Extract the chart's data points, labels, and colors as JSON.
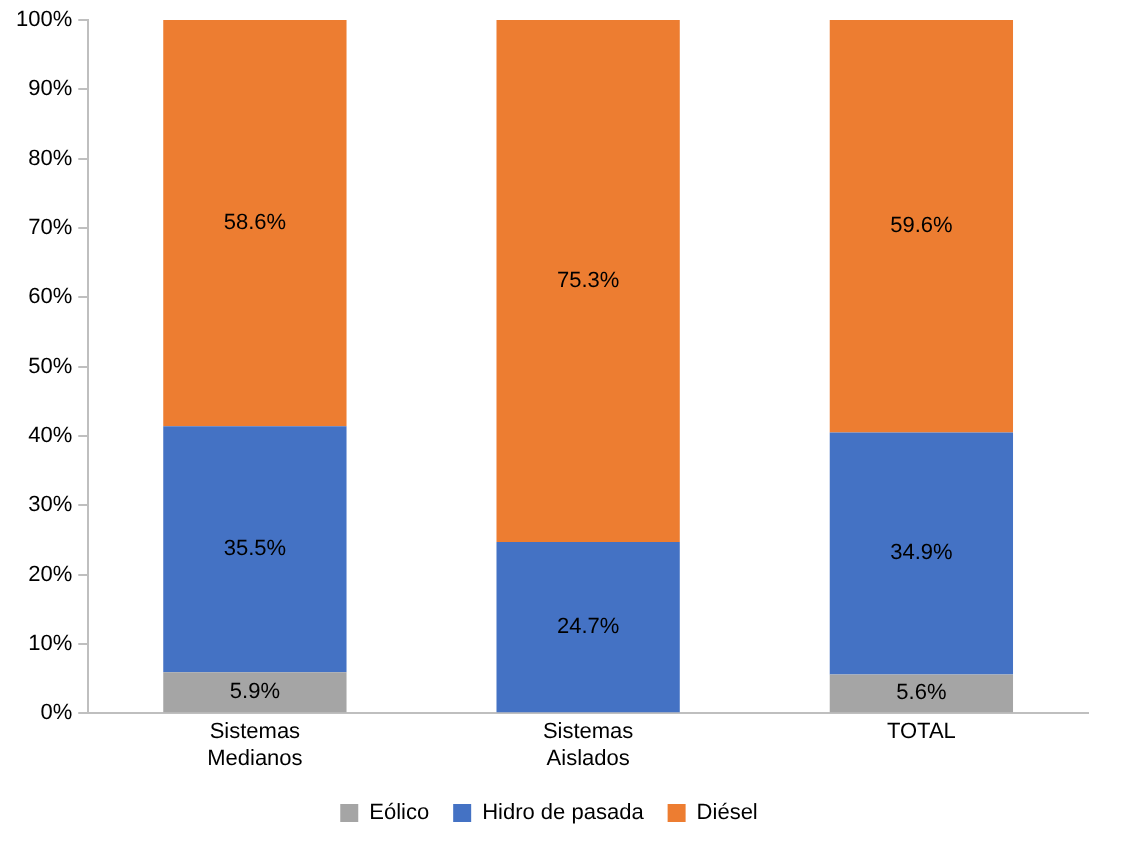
{
  "chart_data": {
    "type": "bar",
    "stacked": true,
    "categories": [
      "Sistemas Medianos",
      "Sistemas Aislados",
      "TOTAL"
    ],
    "series": [
      {
        "name": "Eólico",
        "color": "#a5a5a5",
        "values": [
          5.9,
          0,
          5.6
        ],
        "value_labels": [
          "5.9%",
          null,
          "5.6%"
        ]
      },
      {
        "name": "Hidro de pasada",
        "color": "#4472c4",
        "values": [
          35.5,
          24.7,
          34.9
        ],
        "value_labels": [
          "35.5%",
          "24.7%",
          "34.9%"
        ]
      },
      {
        "name": "Diésel",
        "color": "#ed7d31",
        "values": [
          58.6,
          75.3,
          59.6
        ],
        "value_labels": [
          "58.6%",
          "75.3%",
          "59.6%"
        ]
      }
    ],
    "ylim": [
      0,
      100
    ],
    "yticks": [
      {
        "value": 0,
        "label": "0%"
      },
      {
        "value": 10,
        "label": "10%"
      },
      {
        "value": 20,
        "label": "20%"
      },
      {
        "value": 30,
        "label": "30%"
      },
      {
        "value": 40,
        "label": "40%"
      },
      {
        "value": 50,
        "label": "50%"
      },
      {
        "value": 60,
        "label": "60%"
      },
      {
        "value": 70,
        "label": "70%"
      },
      {
        "value": 80,
        "label": "80%"
      },
      {
        "value": 90,
        "label": "90%"
      },
      {
        "value": 100,
        "label": "100%"
      }
    ],
    "grid": false,
    "legend": "bottom"
  }
}
